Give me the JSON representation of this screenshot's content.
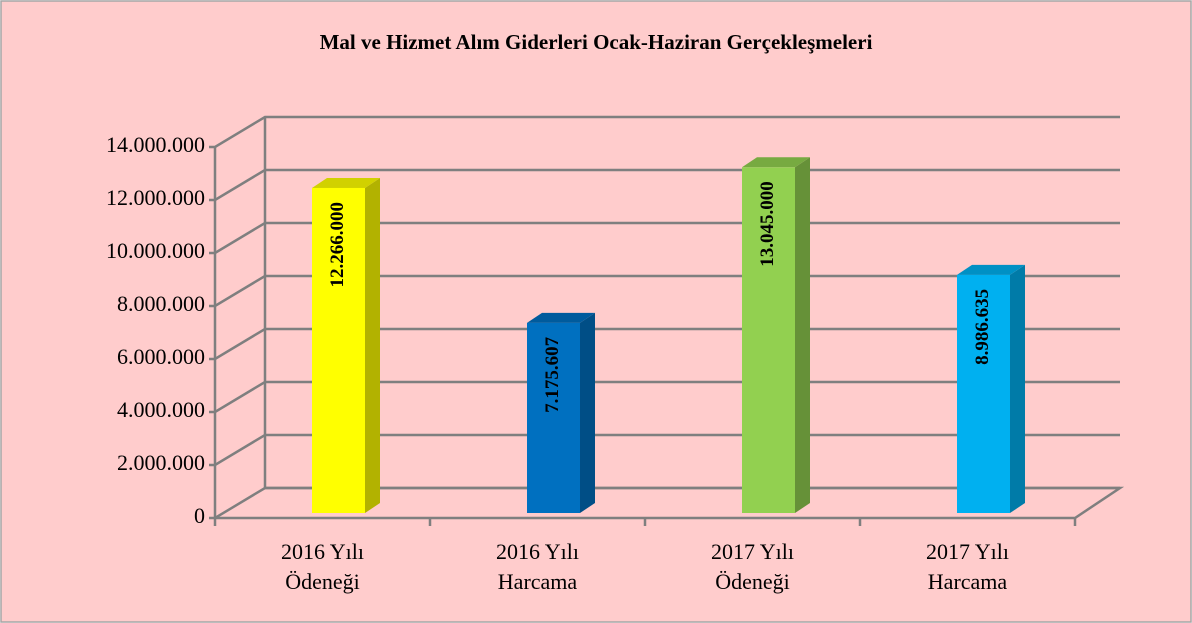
{
  "chart_data": {
    "type": "bar",
    "title": "Mal ve Hizmet Alım Giderleri Ocak-Haziran Gerçekleşmeleri",
    "categories": [
      "2016 Yılı Ödeneği",
      "2016 Yılı Harcama",
      "2017 Yılı Ödeneği",
      "2017 Yılı Harcama"
    ],
    "values": [
      12266000,
      7175607,
      13045000,
      8986635
    ],
    "value_labels": [
      "12.266.000",
      "7.175.607",
      "13.045.000",
      "8.986.635"
    ],
    "colors": [
      "#ffff00",
      "#0070c0",
      "#92d050",
      "#00b0f0"
    ],
    "ylim": [
      0,
      14000000
    ],
    "yticks": [
      0,
      {
        "value": 2000000,
        "label": "2.000.000"
      },
      {
        "value": 4000000,
        "label": "4.000.000"
      },
      {
        "value": 6000000,
        "label": "6.000.000"
      },
      {
        "value": 8000000,
        "label": "8.000.000"
      },
      {
        "value": 10000000,
        "label": "10.000.000"
      },
      {
        "value": 12000000,
        "label": "12.000.000"
      },
      {
        "value": 14000000,
        "label": "14.000.000"
      }
    ],
    "grid": true
  }
}
